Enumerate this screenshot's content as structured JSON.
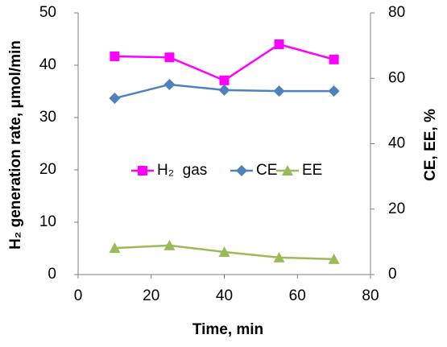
{
  "chart_data": {
    "type": "line",
    "xlabel": "Time, min",
    "ylabel": "H₂ generation rate, μmol/min",
    "y2label": "CE, EE, %",
    "xlim": [
      0,
      80
    ],
    "xticks": [
      0,
      20,
      40,
      60,
      80
    ],
    "ylim": [
      0,
      50
    ],
    "yticks": [
      0,
      10,
      20,
      30,
      40,
      50
    ],
    "y2lim": [
      0,
      80
    ],
    "y2ticks": [
      0,
      20,
      40,
      60,
      80
    ],
    "x": [
      10,
      25,
      40,
      55,
      70
    ],
    "series": [
      {
        "name": "H₂  gas",
        "color": "#ff00ff",
        "marker": "square",
        "values": [
          41.7,
          41.5,
          37.1,
          44.0,
          41.1
        ]
      },
      {
        "name": "CE",
        "color": "#4f81bd",
        "marker": "diamond",
        "axis": "y2",
        "values": [
          53.9,
          58.1,
          56.4,
          56.1,
          56.1
        ]
      },
      {
        "name": "EE",
        "color": "#9bbb59",
        "marker": "triangle",
        "axis": "y2",
        "values": [
          8.1,
          8.9,
          6.9,
          5.2,
          4.7
        ]
      }
    ]
  }
}
